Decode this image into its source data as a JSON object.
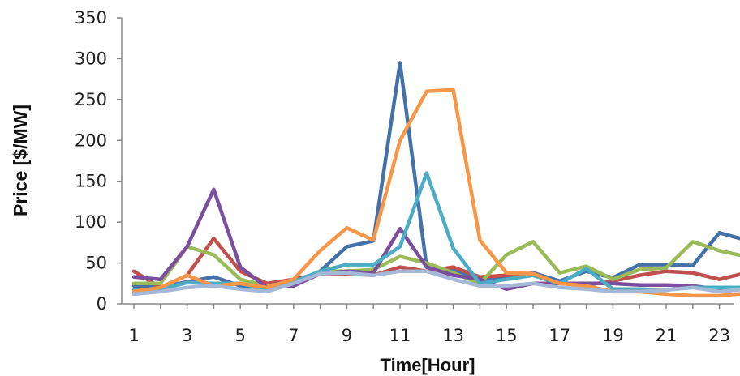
{
  "chart_data": {
    "type": "line",
    "xlabel": "Time[Hour]",
    "ylabel": "Price [$/MW]",
    "x": [
      1,
      2,
      3,
      4,
      5,
      6,
      7,
      8,
      9,
      10,
      11,
      12,
      13,
      14,
      15,
      16,
      17,
      18,
      19,
      20,
      21,
      22,
      23,
      24
    ],
    "xticks": [
      "1",
      "3",
      "5",
      "7",
      "9",
      "11",
      "13",
      "15",
      "17",
      "19",
      "21",
      "23"
    ],
    "yticks": [
      "0",
      "50",
      "100",
      "150",
      "200",
      "250",
      "300",
      "350"
    ],
    "ylim": [
      0,
      350
    ],
    "xlim": [
      0.5,
      24
    ],
    "grid": false,
    "legend": "none",
    "series": [
      {
        "color": "#4472a8",
        "values": [
          22,
          20,
          27,
          33,
          22,
          17,
          25,
          40,
          70,
          77,
          295,
          45,
          42,
          28,
          32,
          38,
          28,
          40,
          32,
          48,
          48,
          47,
          87,
          78
        ]
      },
      {
        "color": "#c0504d",
        "values": [
          40,
          20,
          35,
          80,
          40,
          25,
          30,
          37,
          37,
          35,
          45,
          40,
          45,
          33,
          35,
          35,
          25,
          23,
          28,
          35,
          40,
          38,
          30,
          38
        ]
      },
      {
        "color": "#9bbb59",
        "values": [
          25,
          25,
          70,
          60,
          30,
          22,
          27,
          40,
          40,
          42,
          58,
          50,
          38,
          25,
          60,
          76,
          38,
          46,
          30,
          42,
          44,
          76,
          65,
          58
        ]
      },
      {
        "color": "#7b4f9d",
        "values": [
          33,
          30,
          70,
          140,
          45,
          20,
          22,
          37,
          40,
          38,
          92,
          45,
          35,
          30,
          18,
          25,
          25,
          25,
          25,
          23,
          23,
          22,
          18,
          20
        ]
      },
      {
        "color": "#4bacc6",
        "values": [
          17,
          18,
          26,
          25,
          25,
          18,
          27,
          40,
          48,
          48,
          70,
          160,
          68,
          25,
          30,
          35,
          25,
          43,
          18,
          18,
          17,
          20,
          20,
          20
        ]
      },
      {
        "color": "#f79646",
        "values": [
          15,
          20,
          35,
          22,
          25,
          20,
          30,
          65,
          93,
          78,
          200,
          260,
          262,
          78,
          38,
          37,
          25,
          22,
          15,
          15,
          12,
          10,
          10,
          13
        ]
      },
      {
        "color": "#a5b8d8",
        "values": [
          12,
          15,
          20,
          22,
          18,
          15,
          25,
          37,
          38,
          35,
          40,
          40,
          30,
          22,
          22,
          25,
          20,
          18,
          15,
          15,
          17,
          20,
          15,
          18
        ]
      }
    ]
  }
}
